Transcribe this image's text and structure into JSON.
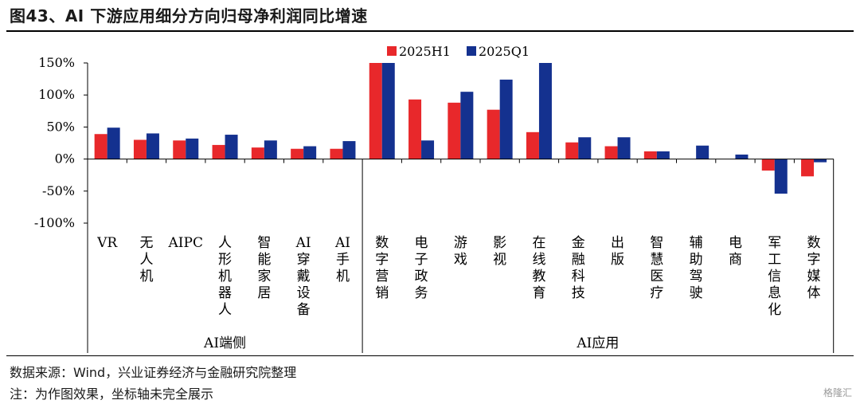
{
  "title": "图43、AI 下游应用细分方向归母净利润同比增速",
  "source": "数据来源：Wind，兴业证券经济与金融研究院整理",
  "note": "注：为作图效果，坐标轴未完全展示",
  "watermark": "格隆汇",
  "chart_data": {
    "type": "bar",
    "categories": [
      "VR",
      "无人机",
      "AIPC",
      "人形机器人",
      "智能家居",
      "AI穿戴设备",
      "AI手机",
      "数字营销",
      "电子政务",
      "游戏",
      "影视",
      "在线教育",
      "金融科技",
      "出版",
      "智慧医疗",
      "辅助驾驶",
      "电商",
      "军工信息化",
      "数字媒体"
    ],
    "groups": [
      {
        "label": "AI端侧",
        "count": 7
      },
      {
        "label": "AI应用",
        "count": 12
      }
    ],
    "series": [
      {
        "name": "2025H1",
        "color": "#e8282b",
        "values": [
          39,
          30,
          29,
          22,
          18,
          16,
          16,
          150,
          93,
          88,
          77,
          42,
          26,
          20,
          12,
          0,
          0,
          -18,
          -27
        ]
      },
      {
        "name": "2025Q1",
        "color": "#14318f",
        "values": [
          49,
          40,
          32,
          38,
          29,
          20,
          28,
          150,
          29,
          105,
          124,
          150,
          34,
          34,
          12,
          21,
          7,
          -54,
          -5
        ]
      }
    ],
    "ylim": [
      -100,
      150
    ],
    "yticks": [
      "150%",
      "100%",
      "50%",
      "0%",
      "-50%",
      "-100%"
    ],
    "yticks_values": [
      150,
      100,
      50,
      0,
      -50,
      -100
    ],
    "legend": "top-center",
    "grid": false
  }
}
